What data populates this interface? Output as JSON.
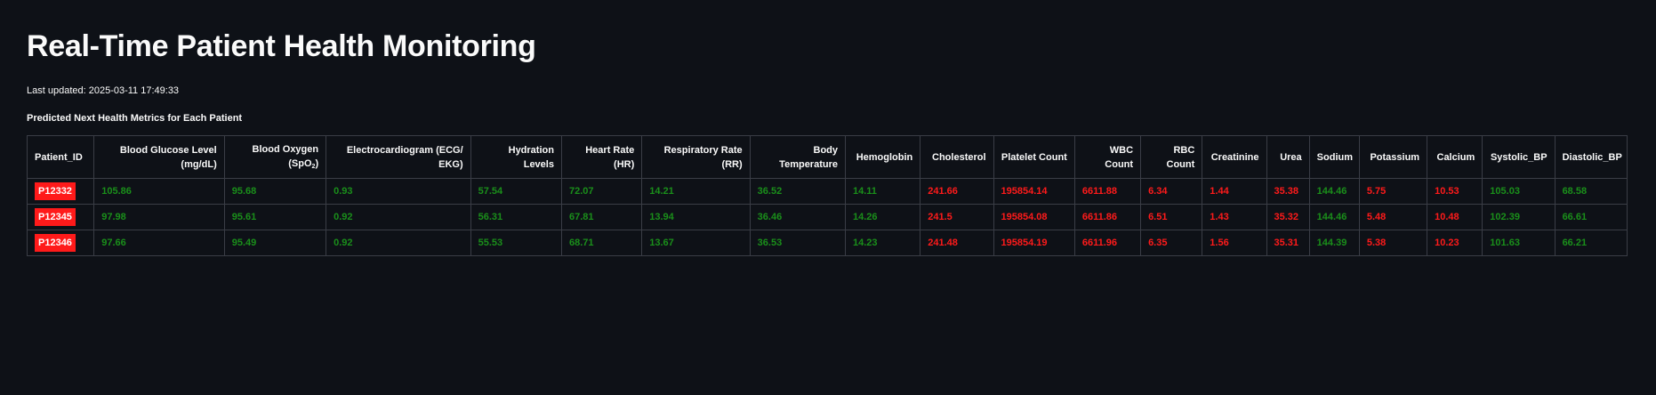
{
  "page": {
    "title": "Real-Time Patient Health Monitoring",
    "last_updated": "Last updated: 2025-03-11 17:49:33",
    "subtitle": "Predicted Next Health Metrics for Each Patient"
  },
  "colors": {
    "background": "#0e1117",
    "normal_value": "#1a8f1a",
    "abnormal_value": "#ff1a1a",
    "patient_badge": "#ff1a1a"
  },
  "table": {
    "columns": [
      {
        "label": "Patient_ID"
      },
      {
        "label": "Blood Glucose Level (mg/dL)"
      },
      {
        "label": "Blood Oxygen (SpO",
        "sub": "2",
        "suffix": ")"
      },
      {
        "label": "Electrocardiogram (ECG/ EKG)"
      },
      {
        "label": "Hydration Levels"
      },
      {
        "label": "Heart Rate (HR)"
      },
      {
        "label": "Respiratory Rate (RR)"
      },
      {
        "label": "Body Temperature"
      },
      {
        "label": "Hemoglobin"
      },
      {
        "label": "Cholesterol"
      },
      {
        "label": "Platelet Count"
      },
      {
        "label": "WBC Count"
      },
      {
        "label": "RBC Count"
      },
      {
        "label": "Creatinine"
      },
      {
        "label": "Urea"
      },
      {
        "label": "Sodium"
      },
      {
        "label": "Potassium"
      },
      {
        "label": "Calcium"
      },
      {
        "label": "Systolic_BP"
      },
      {
        "label": "Diastolic_BP"
      }
    ],
    "status": [
      "id",
      "good",
      "good",
      "good",
      "good",
      "good",
      "good",
      "good",
      "good",
      "bad",
      "bad",
      "bad",
      "bad",
      "bad",
      "bad",
      "good",
      "bad",
      "bad",
      "good",
      "good"
    ],
    "rows": [
      [
        "P12332",
        "105.86",
        "95.68",
        "0.93",
        "57.54",
        "72.07",
        "14.21",
        "36.52",
        "14.11",
        "241.66",
        "195854.14",
        "6611.88",
        "6.34",
        "1.44",
        "35.38",
        "144.46",
        "5.75",
        "10.53",
        "105.03",
        "68.58"
      ],
      [
        "P12345",
        "97.98",
        "95.61",
        "0.92",
        "56.31",
        "67.81",
        "13.94",
        "36.46",
        "14.26",
        "241.5",
        "195854.08",
        "6611.86",
        "6.51",
        "1.43",
        "35.32",
        "144.46",
        "5.48",
        "10.48",
        "102.39",
        "66.61"
      ],
      [
        "P12346",
        "97.66",
        "95.49",
        "0.92",
        "55.53",
        "68.71",
        "13.67",
        "36.53",
        "14.23",
        "241.48",
        "195854.19",
        "6611.96",
        "6.35",
        "1.56",
        "35.31",
        "144.39",
        "5.38",
        "10.23",
        "101.63",
        "66.21"
      ]
    ]
  }
}
